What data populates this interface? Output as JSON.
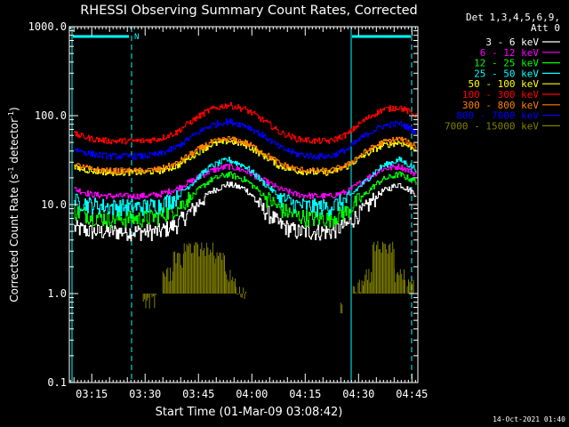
{
  "chart_data": {
    "type": "line",
    "title": "RHESSI Observing Summary Count Rates, Corrected",
    "xlabel": "Start Time (01-Mar-09 03:08:42)",
    "ylabel_main": "Corrected Count Rate (s",
    "ylabel_exp1": "-1",
    "ylabel_mid": " detector",
    "ylabel_exp2": "-1",
    "ylabel_end": ")",
    "yscale": "log",
    "ylim": [
      0.1,
      1000.0
    ],
    "yticks": [
      "0.1",
      "1.0",
      "10.0",
      "100.0",
      "1000.0"
    ],
    "xlim": [
      "03:08:42",
      "04:46:40"
    ],
    "xticks": [
      "03:15",
      "03:30",
      "03:45",
      "04:00",
      "04:15",
      "04:30",
      "04:45"
    ],
    "legend_position": "outside top-right",
    "legend_header": [
      "Det 1,3,4,5,6,9,",
      "Att 0"
    ],
    "grid": false,
    "night_marker": "N",
    "timestamp": "14-Oct-2021 01:40",
    "series": [
      {
        "name": "3 - 6 keV",
        "color": "#ffffff",
        "values": [
          5.5,
          5.0,
          5.0,
          5.0,
          5.0,
          5.0,
          6.0,
          9.0,
          14.0,
          17.0,
          15.0,
          9.0,
          6.0,
          5.0,
          5.0,
          5.0,
          6.0,
          9.0,
          14.0,
          17.0,
          13.0
        ]
      },
      {
        "name": "6 - 12 keV",
        "color": "#ff00ff",
        "values": [
          15.0,
          13.0,
          12.5,
          12.5,
          12.5,
          13.0,
          15.0,
          19.0,
          24.0,
          27.0,
          24.0,
          19.0,
          15.0,
          13.0,
          12.5,
          12.5,
          14.0,
          19.0,
          25.0,
          27.0,
          22.0
        ]
      },
      {
        "name": "12 - 25 keV",
        "color": "#00ff00",
        "values": [
          8.5,
          7.5,
          7.0,
          7.0,
          7.0,
          7.5,
          9.0,
          13.0,
          19.0,
          22.0,
          19.0,
          13.0,
          9.0,
          7.5,
          7.0,
          7.0,
          8.5,
          13.0,
          19.0,
          22.0,
          18.0
        ]
      },
      {
        "name": "25 - 50 keV",
        "color": "#00ffff",
        "values": [
          11.0,
          10.0,
          9.5,
          9.5,
          9.5,
          10.0,
          12.0,
          18.0,
          27.0,
          32.0,
          27.0,
          18.0,
          12.0,
          10.0,
          9.5,
          9.5,
          11.5,
          18.0,
          27.0,
          32.0,
          25.0
        ]
      },
      {
        "name": "50 - 100 keV",
        "color": "#ffff00",
        "values": [
          26.0,
          24.0,
          23.0,
          23.0,
          23.0,
          24.0,
          27.0,
          36.0,
          47.0,
          52.0,
          47.0,
          36.0,
          27.0,
          24.0,
          23.0,
          23.0,
          27.0,
          36.0,
          46.0,
          50.0,
          42.0
        ]
      },
      {
        "name": "100 - 300 keV",
        "color": "#ff0000",
        "values": [
          62.0,
          55.0,
          52.0,
          52.0,
          52.0,
          55.0,
          65.0,
          90.0,
          118.0,
          132.0,
          118.0,
          90.0,
          65.0,
          55.0,
          52.0,
          52.0,
          62.0,
          90.0,
          116.0,
          125.0,
          100.0
        ]
      },
      {
        "name": "300 - 800 keV",
        "color": "#ff7f00",
        "values": [
          28.0,
          25.0,
          24.0,
          24.0,
          24.0,
          25.0,
          29.0,
          39.0,
          50.0,
          55.0,
          50.0,
          39.0,
          29.0,
          25.0,
          24.0,
          24.0,
          28.0,
          39.0,
          50.0,
          55.0,
          45.0
        ]
      },
      {
        "name": "800 - 7000 keV",
        "color": "#0000ff",
        "values": [
          42.0,
          37.0,
          35.0,
          35.0,
          35.0,
          37.0,
          44.0,
          60.0,
          78.0,
          86.0,
          78.0,
          60.0,
          44.0,
          37.0,
          35.0,
          35.0,
          42.0,
          60.0,
          76.0,
          82.0,
          66.0
        ]
      },
      {
        "name": "7000 - 15000 keV",
        "color": "#808000",
        "values": []
      }
    ]
  }
}
